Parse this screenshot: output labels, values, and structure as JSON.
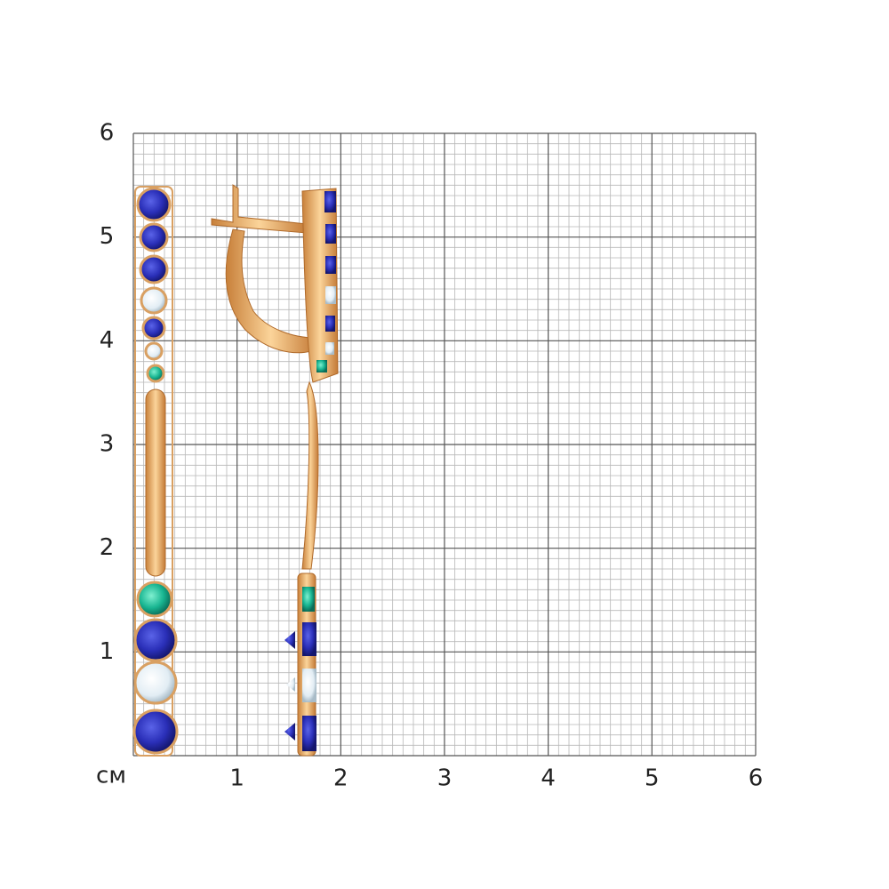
{
  "axis": {
    "unit": "см",
    "x_labels": [
      "1",
      "2",
      "3",
      "4",
      "5",
      "6"
    ],
    "y_labels": [
      "1",
      "2",
      "3",
      "4",
      "5",
      "6"
    ]
  }
}
